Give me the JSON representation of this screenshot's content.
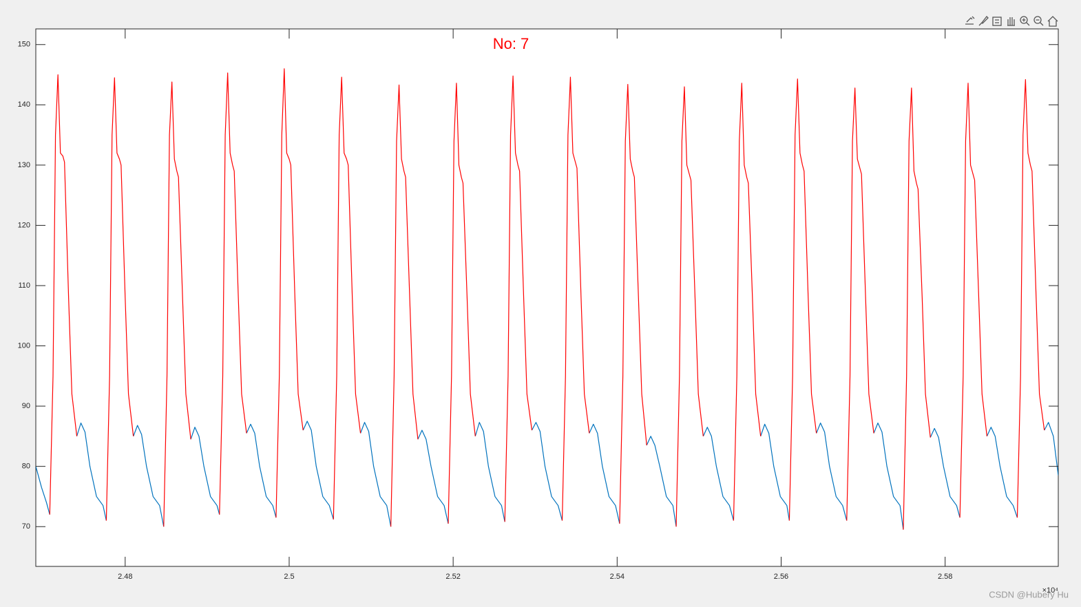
{
  "chart_data": {
    "type": "line",
    "annotation": "No:  7",
    "annotation_color": "#ff0000",
    "x_exponent_label": "×10⁴",
    "watermark": "CSDN @Hubery Hu",
    "xlim": [
      24691,
      25938
    ],
    "ylim": [
      63.4,
      152.6
    ],
    "xticks": [
      {
        "value": 24800,
        "label": "2.48"
      },
      {
        "value": 25000,
        "label": "2.5"
      },
      {
        "value": 25200,
        "label": "2.52"
      },
      {
        "value": 25400,
        "label": "2.54"
      },
      {
        "value": 25600,
        "label": "2.56"
      },
      {
        "value": 25800,
        "label": "2.58"
      }
    ],
    "yticks": [
      70,
      80,
      90,
      100,
      110,
      120,
      130,
      140,
      150
    ],
    "grid": false,
    "series": [
      {
        "color": "#0072bd",
        "x": [
          24691,
          24698,
          24704,
          24708,
          null,
          24741,
          24746,
          24751,
          24757,
          24765,
          24773,
          24777,
          null,
          24810,
          24815,
          24820,
          24826,
          24834,
          24842,
          24847,
          null,
          24880,
          24885,
          24890,
          24896,
          24904,
          24912,
          24915,
          null,
          24948,
          24953,
          24958,
          24964,
          24972,
          24980,
          24984,
          null,
          25017,
          25022,
          25027,
          25033,
          25041,
          25049,
          25054,
          null,
          25087,
          25092,
          25097,
          25103,
          25111,
          25119,
          25124,
          null,
          25157,
          25162,
          25167,
          25173,
          25181,
          25189,
          25194,
          null,
          25227,
          25232,
          25237,
          25243,
          25251,
          25259,
          25263,
          null,
          25296,
          25301,
          25306,
          25312,
          25320,
          25328,
          25333,
          null,
          25366,
          25371,
          25376,
          25382,
          25390,
          25398,
          25403,
          null,
          25436,
          25441,
          25446,
          25452,
          25460,
          25468,
          25472,
          null,
          25505,
          25510,
          25515,
          25521,
          25529,
          25537,
          25542,
          null,
          25575,
          25580,
          25585,
          25591,
          25599,
          25607,
          25610,
          null,
          25643,
          25648,
          25653,
          25659,
          25667,
          25675,
          25680,
          null,
          25713,
          25718,
          25723,
          25729,
          25737,
          25745,
          25749,
          null,
          25782,
          25787,
          25792,
          25798,
          25806,
          25814,
          25818,
          null,
          25851,
          25856,
          25861,
          25867,
          25875,
          25883,
          25888,
          null,
          25921,
          25926,
          25932,
          25938
        ],
        "values": [
          80,
          76.5,
          74,
          72,
          null,
          85,
          87.2,
          85.7,
          80,
          75,
          73.5,
          71,
          null,
          85,
          86.8,
          85.3,
          80,
          75,
          73.5,
          70,
          null,
          84.5,
          86.5,
          85,
          80,
          75,
          73.5,
          72,
          null,
          85.5,
          87,
          85.5,
          80,
          75,
          73.5,
          71.5,
          null,
          86,
          87.5,
          86,
          80,
          75,
          73.5,
          71.2,
          null,
          85.5,
          87.3,
          85.8,
          80,
          75,
          73.5,
          70,
          null,
          84.5,
          86,
          84.5,
          80,
          75,
          73.5,
          70.5,
          null,
          85,
          87.3,
          85.8,
          80,
          75,
          73.5,
          70.8,
          null,
          86,
          87.3,
          85.8,
          80,
          75,
          73.5,
          71,
          null,
          85.5,
          87,
          85.5,
          80,
          75,
          73.5,
          70.5,
          null,
          83.5,
          85,
          83.5,
          80,
          75,
          73.5,
          70,
          null,
          85,
          86.5,
          85,
          80,
          75,
          73.5,
          71,
          null,
          85,
          87,
          85.5,
          80,
          75,
          73.5,
          71,
          null,
          85.5,
          87.2,
          85.7,
          80,
          75,
          73.5,
          71,
          null,
          85.5,
          87.2,
          85.7,
          80,
          75,
          73.5,
          69.5,
          null,
          84.8,
          86.3,
          84.8,
          80,
          75,
          73.5,
          71.5,
          null,
          85,
          86.5,
          85,
          80,
          75,
          73.5,
          71.5,
          null,
          86,
          87.3,
          85,
          78.5
        ]
      },
      {
        "color": "#ff0000",
        "x": [
          24708,
          24712,
          24715,
          24718,
          24721,
          24724,
          24726,
          24731,
          24735,
          24741,
          null,
          24777,
          24781,
          24784,
          24787,
          24790,
          24793,
          24795,
          24800,
          24804,
          24810,
          null,
          24847,
          24851,
          24854,
          24857,
          24860,
          24863,
          24865,
          24870,
          24874,
          24880,
          null,
          24915,
          24919,
          24922,
          24925,
          24928,
          24931,
          24933,
          24938,
          24942,
          24948,
          null,
          24984,
          24988,
          24991,
          24994,
          24997,
          25000,
          25002,
          25007,
          25011,
          25017,
          null,
          25054,
          25058,
          25061,
          25064,
          25067,
          25070,
          25072,
          25077,
          25081,
          25087,
          null,
          25124,
          25128,
          25131,
          25134,
          25137,
          25140,
          25142,
          25147,
          25151,
          25157,
          null,
          25194,
          25198,
          25201,
          25204,
          25207,
          25210,
          25212,
          25217,
          25221,
          25227,
          null,
          25263,
          25267,
          25270,
          25273,
          25276,
          25279,
          25281,
          25286,
          25290,
          25296,
          null,
          25333,
          25337,
          25340,
          25343,
          25346,
          25349,
          25351,
          25356,
          25360,
          25366,
          null,
          25403,
          25407,
          25410,
          25413,
          25416,
          25419,
          25421,
          25426,
          25430,
          25436,
          null,
          25472,
          25476,
          25479,
          25482,
          25485,
          25488,
          25490,
          25495,
          25499,
          25505,
          null,
          25542,
          25546,
          25549,
          25552,
          25555,
          25558,
          25560,
          25565,
          25569,
          25575,
          null,
          25610,
          25614,
          25617,
          25620,
          25623,
          25626,
          25628,
          25633,
          25637,
          25643,
          null,
          25680,
          25684,
          25687,
          25690,
          25693,
          25696,
          25698,
          25703,
          25707,
          25713,
          null,
          25749,
          25753,
          25756,
          25759,
          25762,
          25765,
          25767,
          25772,
          25776,
          25782,
          null,
          25818,
          25822,
          25825,
          25828,
          25831,
          25834,
          25836,
          25841,
          25845,
          25851,
          null,
          25888,
          25892,
          25895,
          25898,
          25901,
          25904,
          25906,
          25911,
          25915,
          25921
        ],
        "values": [
          72,
          95,
          135,
          145,
          132,
          131.5,
          130.5,
          108,
          92,
          85,
          null,
          71,
          95,
          135,
          144.5,
          132,
          131,
          130,
          108,
          92,
          85,
          null,
          70,
          95,
          135,
          143.8,
          131,
          129,
          128,
          108,
          92,
          84.5,
          null,
          72,
          95,
          135,
          145.3,
          132,
          130,
          129,
          108,
          92,
          85.5,
          null,
          71.5,
          95,
          135,
          146,
          132,
          131,
          130,
          108,
          92,
          86,
          null,
          71.2,
          95,
          135,
          144.6,
          132,
          131,
          130,
          108,
          92,
          85.5,
          null,
          70,
          95,
          134,
          143.3,
          131,
          129,
          128,
          108,
          92,
          84.5,
          null,
          70.5,
          95,
          134,
          143.6,
          130,
          128,
          127,
          108,
          92,
          85,
          null,
          70.8,
          95,
          135,
          144.8,
          132,
          130,
          129,
          108,
          92,
          86,
          null,
          71,
          95,
          135,
          144.6,
          132,
          130.5,
          129.5,
          108,
          92,
          85.5,
          null,
          70.5,
          95,
          134,
          143.4,
          131,
          129,
          128,
          108,
          92,
          83.5,
          null,
          70,
          95,
          134,
          143,
          130,
          128.5,
          127.5,
          108,
          92,
          85,
          null,
          71,
          95,
          134,
          143.6,
          130,
          128,
          127,
          108,
          92,
          85,
          null,
          71,
          95,
          135,
          144.3,
          132,
          130,
          129,
          108,
          92,
          85.5,
          null,
          71,
          95,
          134,
          142.8,
          131,
          129.5,
          128.5,
          108,
          92,
          85.5,
          null,
          69.5,
          95,
          134,
          142.8,
          129,
          127,
          126,
          108,
          92,
          84.8,
          null,
          71.5,
          95,
          134,
          143.6,
          130,
          128.5,
          127.5,
          108,
          92,
          85,
          null,
          71.5,
          95,
          135,
          144.2,
          132,
          130,
          129,
          108,
          92,
          86
        ]
      }
    ]
  }
}
